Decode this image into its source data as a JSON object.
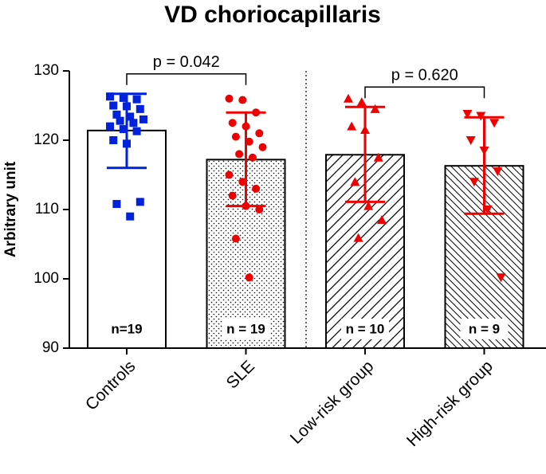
{
  "chart_data": {
    "type": "bar",
    "title": "VD choriocapillaris",
    "y_label": "Arbitrary unit",
    "categories": [
      "Controls",
      "SLE",
      "Low-risk group",
      "High-risk group"
    ],
    "values": [
      121.4,
      117.2,
      117.9,
      116.3
    ],
    "error_upper": [
      126.7,
      124.0,
      124.8,
      123.3
    ],
    "error_lower": [
      116.0,
      110.5,
      111.1,
      109.4
    ],
    "points": [
      [
        126.3,
        126.1,
        125.9,
        125.0,
        124.9,
        124.5,
        123.7,
        123.4,
        123.0,
        122.8,
        122.5,
        122.0,
        121.6,
        121.3,
        120.0,
        119.5,
        111.1,
        110.8,
        109.0
      ],
      [
        126.0,
        125.8,
        124.0,
        122.5,
        122.0,
        121.0,
        120.5,
        119.8,
        119.0,
        118.0,
        117.5,
        115.0,
        114.0,
        113.0,
        112.0,
        110.5,
        110.0,
        105.8,
        100.2
      ],
      [
        126.0,
        125.5,
        124.5,
        122.0,
        121.5,
        117.5,
        114.0,
        110.5,
        108.5,
        105.9
      ],
      [
        123.8,
        123.5,
        122.5,
        120.0,
        118.5,
        115.5,
        114.0,
        110.0,
        100.2
      ]
    ],
    "colors": [
      "#0022dd",
      "#ee0000",
      "#ee0000",
      "#ee0000"
    ],
    "markers": [
      "square",
      "circle",
      "triangle-up",
      "triangle-down"
    ],
    "fills": [
      "plain",
      "dots",
      "hatch-wide",
      "hatch-dense"
    ],
    "n_labels": [
      "n=19",
      "n = 19",
      "n = 10",
      "n = 9"
    ],
    "comparisons": [
      {
        "from": 0,
        "to": 1,
        "label": "p = 0.042"
      },
      {
        "from": 2,
        "to": 3,
        "label": "p = 0.620"
      }
    ],
    "ylim": [
      90,
      130
    ],
    "yticks": [
      90,
      100,
      110,
      120,
      130
    ]
  }
}
